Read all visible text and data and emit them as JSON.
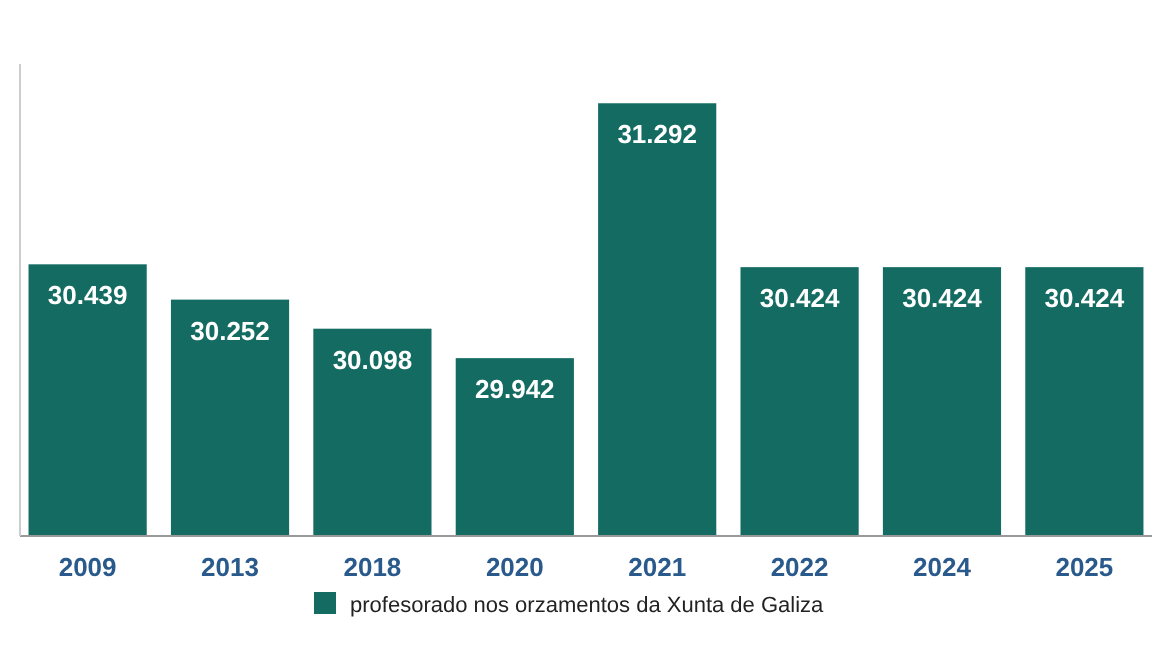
{
  "chart_data": {
    "type": "bar",
    "categories": [
      "2009",
      "2013",
      "2018",
      "2020",
      "2021",
      "2022",
      "2024",
      "2025"
    ],
    "series": [
      {
        "name": "profesorado nos orzamentos da Xunta de Galiza",
        "color": "#136b62",
        "values": [
          30439,
          30252,
          30098,
          29942,
          31292,
          30424,
          30424,
          30424
        ],
        "value_labels": [
          "30.439",
          "30.252",
          "30.098",
          "29.942",
          "31.292",
          "30.424",
          "30.424",
          "30.424"
        ]
      }
    ],
    "ylim": [
      29000,
      31500
    ],
    "tick_labels": "x",
    "legend": "bottom"
  }
}
